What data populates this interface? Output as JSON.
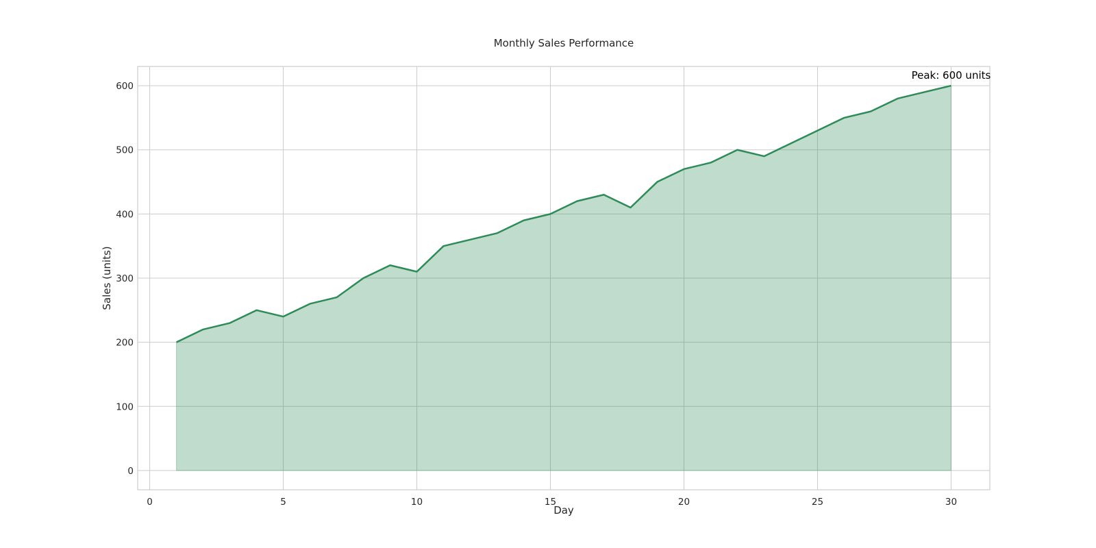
{
  "chart_data": {
    "type": "area",
    "title": "Monthly Sales Performance",
    "xlabel": "Day",
    "ylabel": "Sales (units)",
    "xlim": [
      -0.45,
      31.45
    ],
    "ylim": [
      -30,
      630
    ],
    "xticks": [
      0,
      5,
      10,
      15,
      20,
      25,
      30
    ],
    "yticks": [
      0,
      100,
      200,
      300,
      400,
      500,
      600
    ],
    "grid": true,
    "x": [
      1,
      2,
      3,
      4,
      5,
      6,
      7,
      8,
      9,
      10,
      11,
      12,
      13,
      14,
      15,
      16,
      17,
      18,
      19,
      20,
      21,
      22,
      23,
      24,
      25,
      26,
      27,
      28,
      29,
      30
    ],
    "series": [
      {
        "name": "Sales",
        "values": [
          200,
          220,
          230,
          250,
          240,
          260,
          270,
          300,
          320,
          310,
          350,
          360,
          370,
          390,
          400,
          420,
          430,
          410,
          450,
          470,
          480,
          500,
          490,
          510,
          530,
          550,
          560,
          580,
          590,
          600
        ],
        "line_color": "#2e8b57",
        "fill_color": "#2e8b57",
        "fill_alpha": 0.3
      }
    ],
    "annotation": {
      "text": "Peak: 600 units",
      "x": 30,
      "y": 600
    }
  }
}
